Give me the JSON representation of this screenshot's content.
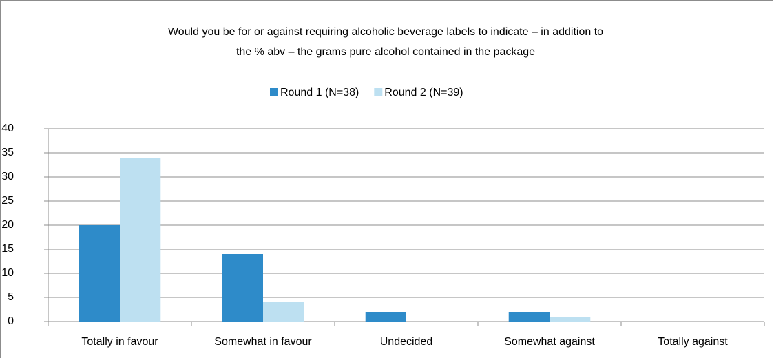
{
  "chart_data": {
    "type": "bar",
    "title": [
      "Would you be for or against requiring alcoholic beverage labels to indicate – in addition to",
      "the % abv – the grams pure alcohol contained in the package"
    ],
    "categories": [
      "Totally in favour",
      "Somewhat in favour",
      "Undecided",
      "Somewhat against",
      "Totally against"
    ],
    "series": [
      {
        "name": "Round 1 (N=38)",
        "color": "#2e8bc9",
        "values": [
          20,
          14,
          2,
          2,
          0
        ]
      },
      {
        "name": "Round 2 (N=39)",
        "color": "#bde0f1",
        "values": [
          34,
          4,
          0,
          1,
          0
        ]
      }
    ],
    "ylim": [
      0,
      40
    ],
    "yticks": [
      0,
      5,
      10,
      15,
      20,
      25,
      30,
      35,
      40
    ],
    "grid": true,
    "legend": "top"
  }
}
